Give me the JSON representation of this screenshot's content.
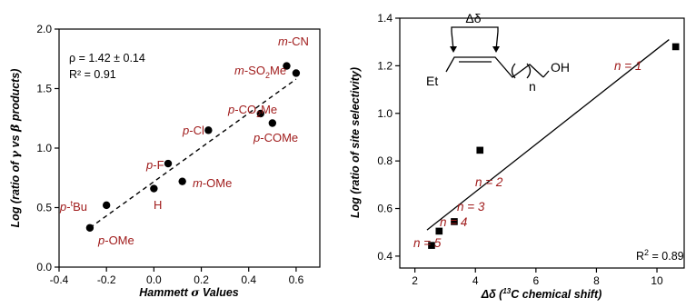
{
  "chart_data": [
    {
      "type": "scatter",
      "xlabel": "Hammett σ Values",
      "ylabel": "Log (ratio of γ vs β products)",
      "xlim": [
        -0.4,
        0.7
      ],
      "ylim": [
        0.0,
        2.0
      ],
      "xticks": [
        "-0.4",
        "-0.2",
        "0.0",
        "0.2",
        "0.4",
        "0.6"
      ],
      "yticks": [
        "0.0",
        "0.5",
        "1.0",
        "1.5",
        "2.0"
      ],
      "fit": {
        "style": "dashed",
        "x": [
          -0.27,
          0.6
        ],
        "y": [
          0.33,
          1.58
        ]
      },
      "annotations": {
        "rho": "ρ = 1.42 ± 0.14",
        "r2": "R² = 0.91"
      },
      "points": [
        {
          "label": "p-OMe",
          "x": -0.27,
          "y": 0.33
        },
        {
          "label": "p-tBu",
          "x": -0.2,
          "y": 0.52
        },
        {
          "label": "H",
          "x": 0.0,
          "y": 0.66
        },
        {
          "label": "p-F",
          "x": 0.06,
          "y": 0.87
        },
        {
          "label": "m-OMe",
          "x": 0.12,
          "y": 0.72
        },
        {
          "label": "p-Cl",
          "x": 0.23,
          "y": 1.15
        },
        {
          "label": "p-CO2Me",
          "x": 0.45,
          "y": 1.29
        },
        {
          "label": "p-COMe",
          "x": 0.5,
          "y": 1.21
        },
        {
          "label": "m-SO2Me",
          "x": 0.6,
          "y": 1.63
        },
        {
          "label": "m-CN",
          "x": 0.56,
          "y": 1.69
        }
      ]
    },
    {
      "type": "scatter",
      "xlabel": "Δδ (13C chemical shift)",
      "ylabel": "Log (ratio of site selectivity)",
      "xlim": [
        1.5,
        10.9
      ],
      "ylim": [
        0.35,
        1.4
      ],
      "xticks": [
        "2",
        "4",
        "6",
        "8",
        "10"
      ],
      "yticks": [
        "0.4",
        "0.6",
        "0.8",
        "1.0",
        "1.2",
        "1.4"
      ],
      "fit": {
        "style": "solid",
        "x": [
          2.4,
          10.4
        ],
        "y": [
          0.51,
          1.31
        ]
      },
      "annotations": {
        "r2": "R² = 0.89"
      },
      "structure": {
        "delta": "Δδ",
        "et": "Et",
        "oh": "OH",
        "n": "n"
      },
      "points": [
        {
          "label": "n = 1",
          "x": 10.62,
          "y": 1.28
        },
        {
          "label": "n = 2",
          "x": 4.15,
          "y": 0.845
        },
        {
          "label": "n = 3",
          "x": 3.3,
          "y": 0.545
        },
        {
          "label": "n = 4",
          "x": 2.8,
          "y": 0.505
        },
        {
          "label": "n = 5",
          "x": 2.55,
          "y": 0.445
        }
      ]
    }
  ]
}
